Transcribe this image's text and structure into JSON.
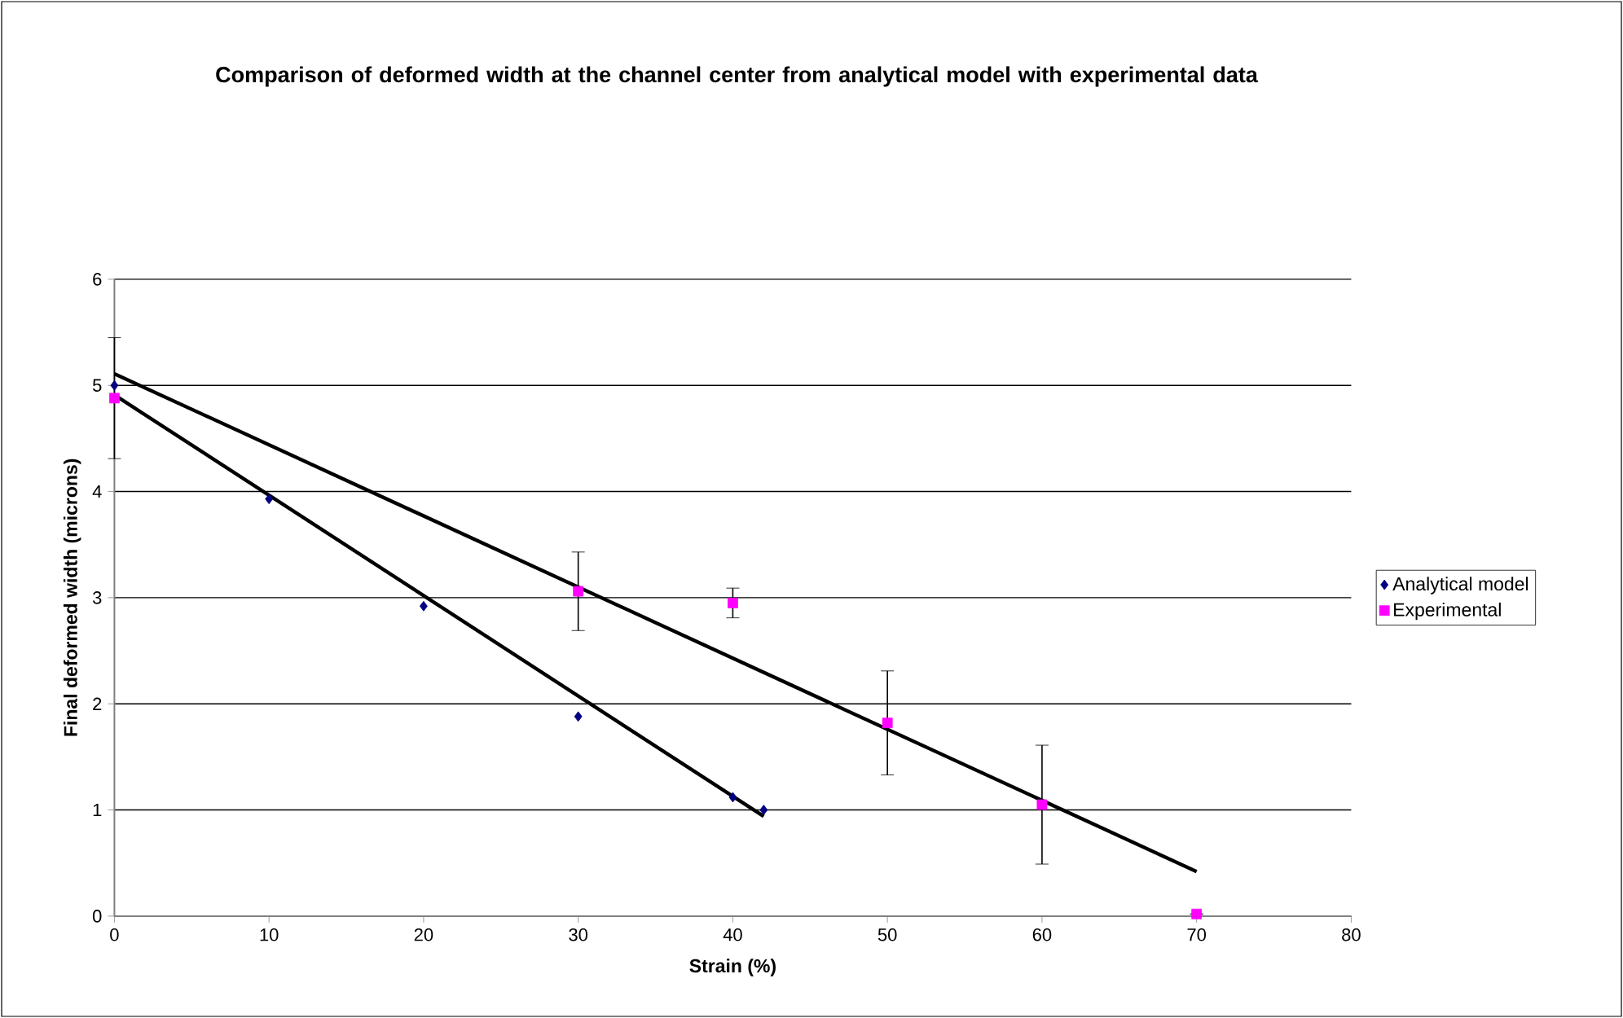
{
  "chart_data": {
    "type": "scatter",
    "title": "Comparison of deformed width at the channel center from analytical model with experimental data",
    "xlabel": "Strain (%)",
    "ylabel": "Final deformed width (microns)",
    "xlim": [
      0,
      80
    ],
    "xticks": [
      0,
      10,
      20,
      30,
      40,
      50,
      60,
      70,
      80
    ],
    "ylim": [
      0,
      6
    ],
    "yticks": [
      0,
      1,
      2,
      3,
      4,
      5,
      6
    ],
    "grid": "y",
    "legend": "right",
    "series": [
      {
        "name": "Analytical model",
        "color": "#000080",
        "marker": "diamond",
        "x": [
          0,
          10,
          20,
          30,
          40,
          42
        ],
        "values": [
          5.0,
          3.93,
          2.92,
          1.88,
          1.12,
          1.0
        ]
      },
      {
        "name": "Experimental",
        "color": "#ff00ff",
        "marker": "square",
        "x": [
          0,
          30,
          40,
          50,
          60,
          70
        ],
        "values": [
          4.88,
          3.06,
          2.95,
          1.82,
          1.05,
          0.02
        ],
        "errors": [
          0.57,
          0.37,
          0.14,
          0.49,
          0.56,
          null
        ]
      },
      {
        "type": "line",
        "color": "#000000",
        "x": [
          0,
          42
        ],
        "values": [
          4.91,
          0.94
        ]
      },
      {
        "type": "line",
        "color": "#000000",
        "x": [
          0,
          70
        ],
        "values": [
          5.11,
          0.42
        ]
      }
    ]
  }
}
